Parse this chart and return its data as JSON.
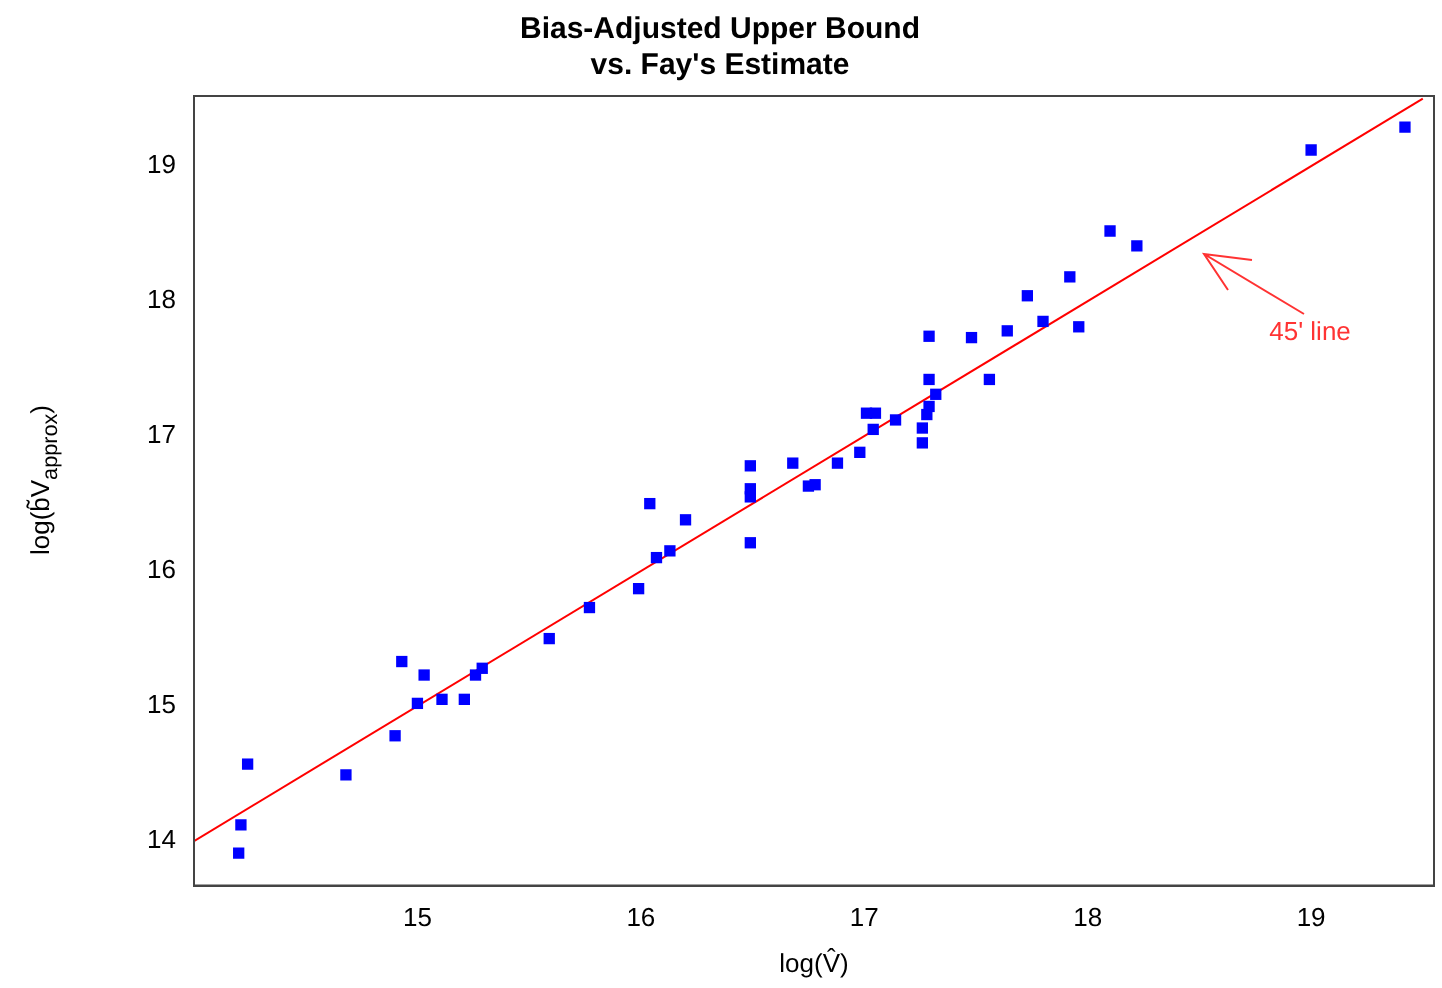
{
  "chart_data": {
    "type": "scatter",
    "title": "Bias-Adjusted Upper Bound\nvs. Fay's Estimate",
    "xlabel": "log(V̂)",
    "ylabel": "log(b̃V$_{approx}$)",
    "xlim": [
      14.0,
      19.55
    ],
    "ylim": [
      13.67,
      19.52
    ],
    "xticks": [
      15,
      16,
      17,
      18,
      19
    ],
    "yticks": [
      14,
      15,
      16,
      17,
      18,
      19
    ],
    "grid": false,
    "legend": false,
    "series": [
      {
        "color": "#0000ff",
        "marker": "square",
        "x": [
          14.2,
          14.21,
          14.24,
          14.68,
          14.9,
          14.93,
          15.0,
          15.03,
          15.11,
          15.21,
          15.26,
          15.29,
          15.59,
          15.77,
          15.99,
          16.04,
          16.07,
          16.13,
          16.2,
          16.49,
          16.49,
          16.49,
          16.49,
          16.68,
          16.75,
          16.78,
          16.88,
          16.98,
          17.01,
          17.04,
          17.05,
          17.14,
          17.26,
          17.26,
          17.28,
          17.29,
          17.29,
          17.29,
          17.32,
          17.48,
          17.56,
          17.64,
          17.73,
          17.8,
          17.92,
          17.96,
          18.1,
          18.22,
          19.0,
          19.42
        ],
        "values": [
          13.91,
          14.12,
          14.57,
          14.49,
          14.78,
          15.33,
          15.02,
          15.23,
          15.05,
          15.05,
          15.23,
          15.28,
          15.5,
          15.73,
          15.87,
          16.5,
          16.1,
          16.15,
          16.38,
          16.21,
          16.55,
          16.61,
          16.78,
          16.8,
          16.63,
          16.64,
          16.8,
          16.88,
          17.17,
          17.05,
          17.17,
          17.12,
          16.95,
          17.06,
          17.16,
          17.22,
          17.42,
          17.74,
          17.31,
          17.73,
          17.42,
          17.78,
          18.04,
          17.85,
          18.18,
          17.81,
          18.52,
          18.41,
          19.12,
          19.29
        ]
      },
      {
        "type": "line",
        "color": "#ff0000",
        "marker": "none",
        "line_style": "solid",
        "x": [
          14.0,
          19.5
        ],
        "values": [
          14.0,
          19.5
        ]
      }
    ],
    "annotations": [
      "45' line"
    ]
  }
}
